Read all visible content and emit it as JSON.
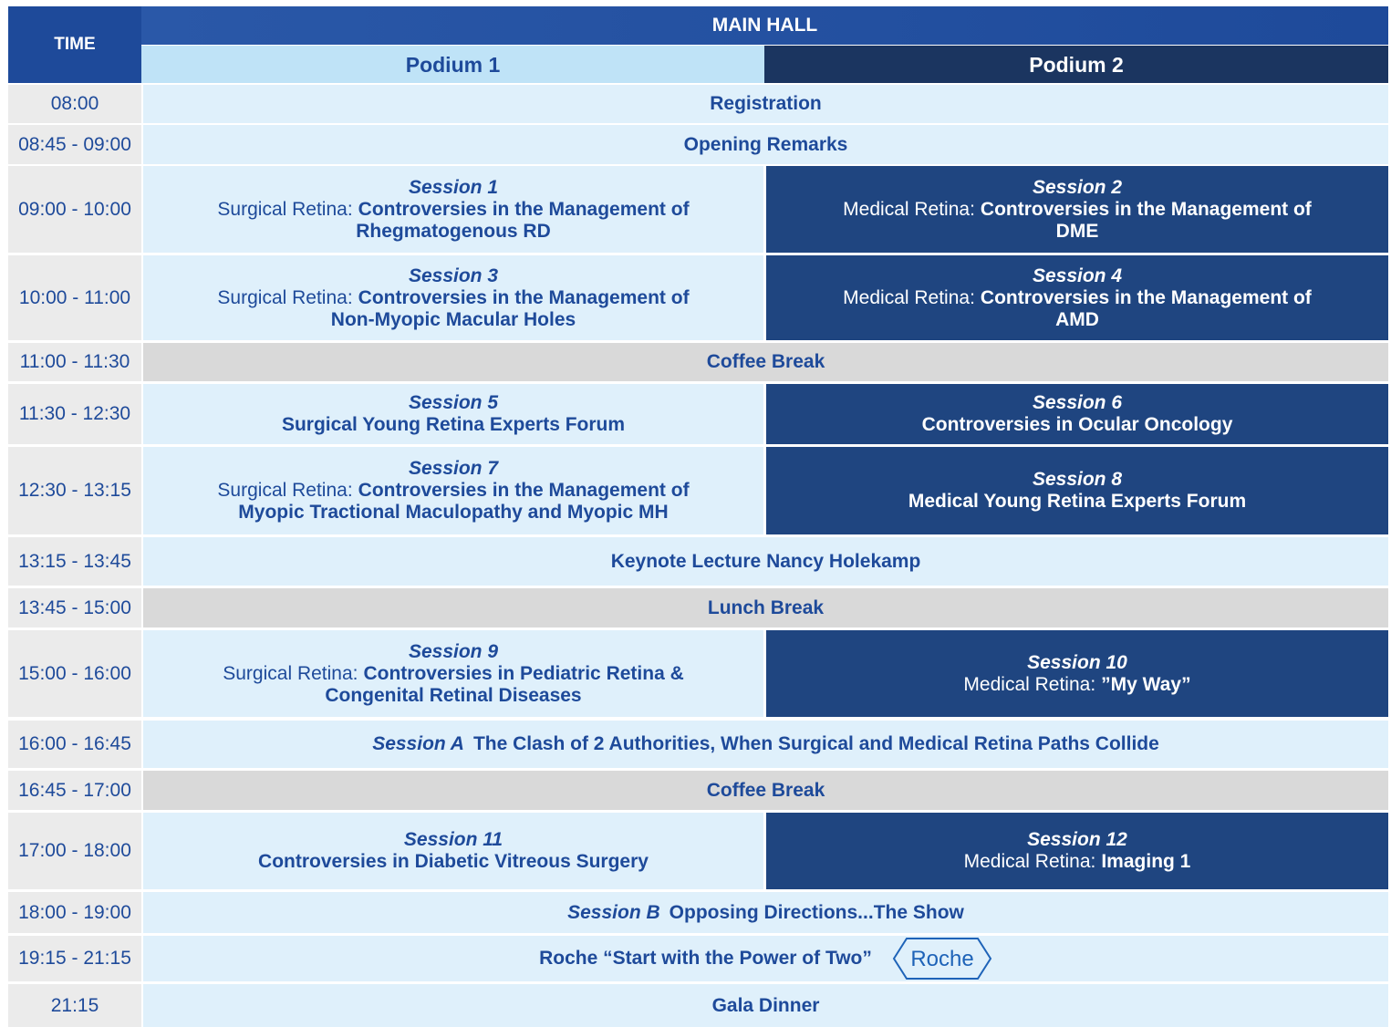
{
  "header": {
    "time": "TIME",
    "hall": "MAIN HALL",
    "podiums": [
      "Podium 1",
      "Podium 2"
    ]
  },
  "rows": [
    {
      "time": "08:00",
      "style": "plain",
      "title": "Registration"
    },
    {
      "time": "08:45 - 09:00",
      "style": "plain",
      "title": "Opening Remarks"
    },
    {
      "time": "09:00 - 10:00",
      "cells": [
        {
          "session": "Session 1",
          "prefix": "Surgical Retina:",
          "title": "Controversies in the Management of Rhegmatogenous RD"
        },
        {
          "session": "Session 2",
          "prefix": "Medical Retina:",
          "title": "Controversies in the Management of DME"
        }
      ]
    },
    {
      "time": "10:00 - 11:00",
      "cells": [
        {
          "session": "Session 3",
          "prefix": "Surgical Retina:",
          "title": "Controversies in the Management of Non-Myopic Macular Holes"
        },
        {
          "session": "Session 4",
          "prefix": "Medical Retina:",
          "title": "Controversies in the Management of AMD"
        }
      ]
    },
    {
      "time": "11:00 - 11:30",
      "style": "break",
      "title": "Coffee Break"
    },
    {
      "time": "11:30 - 12:30",
      "cells": [
        {
          "session": "Session 5",
          "title": "Surgical Young Retina Experts Forum"
        },
        {
          "session": "Session 6",
          "title": "Controversies in Ocular Oncology"
        }
      ]
    },
    {
      "time": "12:30 - 13:15",
      "cells": [
        {
          "session": "Session 7",
          "prefix": "Surgical Retina:",
          "title": "Controversies in the Management of Myopic Tractional Maculopathy and Myopic MH"
        },
        {
          "session": "Session 8",
          "title": "Medical Young Retina Experts Forum"
        }
      ]
    },
    {
      "time": "13:15 - 13:45",
      "style": "plain",
      "title": "Keynote Lecture Nancy Holekamp"
    },
    {
      "time": "13:45 - 15:00",
      "style": "break",
      "title": "Lunch Break"
    },
    {
      "time": "15:00 - 16:00",
      "cells": [
        {
          "session": "Session 9",
          "prefix": "Surgical Retina:",
          "title": "Controversies in Pediatric Retina & Congenital Retinal Diseases"
        },
        {
          "session": "Session 10",
          "prefix": "Medical Retina:",
          "title": "”My Way”"
        }
      ]
    },
    {
      "time": "16:00 - 16:45",
      "style": "plain",
      "session": "Session A",
      "title": "The Clash of 2 Authorities, When Surgical and Medical Retina Paths Collide"
    },
    {
      "time": "16:45 - 17:00",
      "style": "break",
      "title": "Coffee Break"
    },
    {
      "time": "17:00 - 18:00",
      "cells": [
        {
          "session": "Session 11",
          "title": "Controversies in Diabetic Vitreous Surgery"
        },
        {
          "session": "Session 12",
          "prefix": "Medical Retina:",
          "title": "Imaging 1"
        }
      ]
    },
    {
      "time": "18:00 - 19:00",
      "style": "plain",
      "session": "Session B",
      "title": "Opposing Directions...The Show"
    },
    {
      "time": "19:15 - 21:15",
      "style": "plain",
      "title": "Roche “Start with the Power of Two”",
      "logo": "Roche"
    },
    {
      "time": "21:15",
      "style": "plain",
      "title": "Gala Dinner"
    }
  ]
}
